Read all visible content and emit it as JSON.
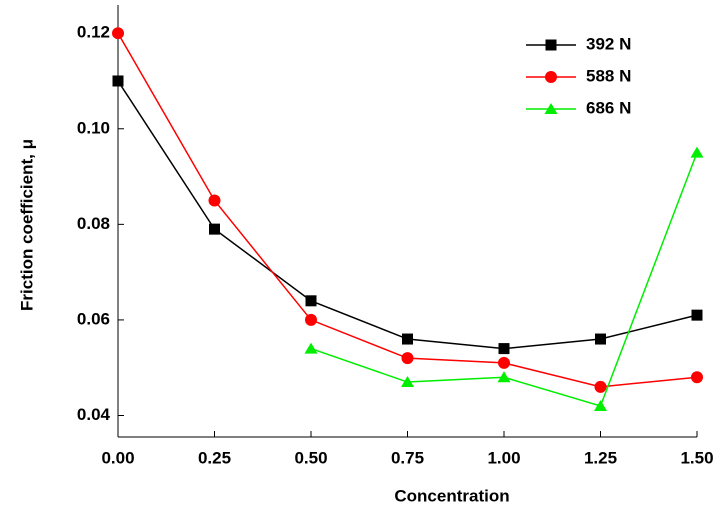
{
  "chart_data": {
    "type": "line",
    "x_label": "Concentration",
    "y_label": "Friction coefficient, μ",
    "x": [
      0,
      0.25,
      0.5,
      0.75,
      1,
      1.25,
      1.5
    ],
    "series": [
      {
        "name": "392 N",
        "color": "#000000",
        "marker": "square",
        "values": [
          0.11,
          0.079,
          0.064,
          0.056,
          0.054,
          0.056,
          0.061
        ]
      },
      {
        "name": "588 N",
        "color": "#ff0000",
        "marker": "circle",
        "values": [
          0.12,
          0.085,
          0.06,
          0.052,
          0.051,
          0.046,
          0.048
        ]
      },
      {
        "name": "686 N",
        "color": "#00ee00",
        "marker": "triangle",
        "values": [
          null,
          null,
          0.054,
          0.047,
          0.048,
          0.042,
          0.095
        ]
      }
    ],
    "xlim": [
      0,
      1.5
    ],
    "xticks": [
      {
        "value": 0,
        "label": "0.00"
      },
      0.25,
      {
        "value": 0.5,
        "label": "0.50"
      },
      0.75,
      {
        "value": 1,
        "label": "1.00"
      },
      1.25,
      {
        "value": 1.5,
        "label": "1.50"
      }
    ],
    "ylim": [
      0.0355,
      0.1259
    ],
    "yticks": [
      0.04,
      0.06,
      0.08,
      {
        "value": 0.1,
        "label": "0.10"
      },
      0.12
    ],
    "legend": "top-right"
  }
}
